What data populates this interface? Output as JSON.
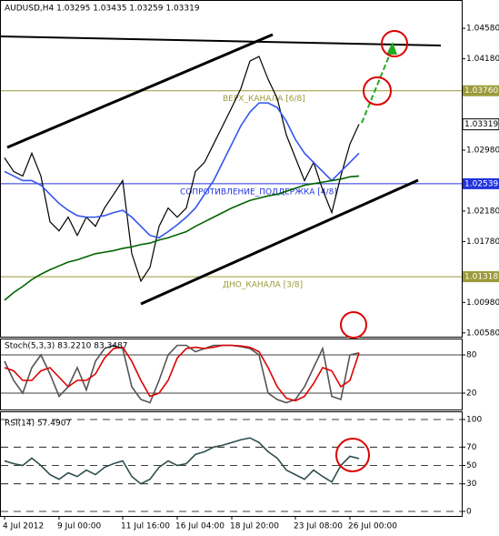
{
  "chart_data": [
    {
      "type": "line",
      "title": "AUDUSD,H4  1.03295 1.03435 1.03259 1.03319",
      "categories": [
        "4 Jul 2012",
        null,
        null,
        null,
        null,
        null,
        "9 Jul 00:00",
        null,
        null,
        null,
        null,
        null,
        null,
        "11 Jul 16:00",
        null,
        null,
        null,
        null,
        null,
        "16 Jul 04:00",
        null,
        null,
        null,
        null,
        null,
        "18 Jul 20:00",
        null,
        null,
        null,
        null,
        null,
        null,
        "23 Jul 08:00",
        null,
        null,
        null,
        null,
        null,
        "26 Jul 00:00",
        null
      ],
      "series": [
        {
          "color": "#000000",
          "values": [
            1.0288,
            1.027,
            1.0264,
            1.0294,
            1.0264,
            1.0204,
            1.0192,
            1.021,
            1.0186,
            1.021,
            1.0198,
            1.0222,
            1.024,
            1.0258,
            1.0162,
            1.0126,
            1.0144,
            1.0198,
            1.0222,
            1.021,
            1.0222,
            1.027,
            1.0282,
            1.0306,
            1.033,
            1.0354,
            1.0379,
            1.0415,
            1.0421,
            1.0391,
            1.0366,
            1.0318,
            1.0288,
            1.0258,
            1.0282,
            1.0246,
            1.0216,
            1.0264,
            1.0306,
            1.0332
          ]
        },
        {
          "color": "#3355ee",
          "values": [
            1.027,
            1.0264,
            1.0258,
            1.0258,
            1.0252,
            1.024,
            1.0228,
            1.0219,
            1.0212,
            1.021,
            1.021,
            1.0212,
            1.0216,
            1.0219,
            1.021,
            1.0198,
            1.0186,
            1.0183,
            1.0191,
            1.02,
            1.021,
            1.0222,
            1.024,
            1.0258,
            1.0282,
            1.0306,
            1.033,
            1.0348,
            1.036,
            1.036,
            1.0354,
            1.0336,
            1.0312,
            1.0294,
            1.0282,
            1.027,
            1.0258,
            1.027,
            1.0282,
            1.0294
          ]
        },
        {
          "color": "#006400",
          "values": [
            1.0101,
            1.0111,
            1.0119,
            1.0128,
            1.0135,
            1.0141,
            1.0146,
            1.0151,
            1.0154,
            1.0158,
            1.0162,
            1.0164,
            1.0166,
            1.0169,
            1.0171,
            1.0174,
            1.0176,
            1.018,
            1.0183,
            1.0187,
            1.0191,
            1.0198,
            1.0204,
            1.021,
            1.0216,
            1.0222,
            1.0227,
            1.0232,
            1.0235,
            1.0238,
            1.024,
            1.0244,
            1.0248,
            1.0252,
            1.0254,
            1.0256,
            1.0258,
            1.026,
            1.0263,
            1.0264
          ]
        }
      ],
      "ylim": [
        1.0053,
        1.0494
      ],
      "yticks": [
        {
          "value": 1.0058,
          "label": "1.00580"
        },
        {
          "value": 1.0098,
          "label": "1.00980"
        },
        {
          "value": 1.0178,
          "label": "1.01780"
        },
        {
          "value": 1.0218,
          "label": "1.02180"
        },
        {
          "value": 1.0298,
          "label": "1.02980"
        },
        {
          "value": 1.0418,
          "label": "1.04180"
        },
        {
          "value": 1.0458,
          "label": "1.04580"
        }
      ],
      "levels": [
        {
          "value": 1.0376,
          "label": "1.03760",
          "color": "#9a9a3a",
          "annotation": "ВЕРХ_КАНАЛА [6/8]"
        },
        {
          "value": 1.02539,
          "label": "1.02539",
          "color": "#2233dd",
          "annotation": "СОПРОТИВЛЕНИЕ_ПОДДЕРЖКА [4/8]"
        },
        {
          "value": 1.01318,
          "label": "1.01318",
          "color": "#9a9a3a",
          "annotation": "ДНО_КАНАЛА [3/8]"
        }
      ],
      "last_price": {
        "value": 1.03319,
        "label": "1.03319"
      }
    },
    {
      "type": "line",
      "title": "Stoch(5,3,3) 83.2210 83.3487",
      "series": [
        {
          "color": "#555555",
          "values": [
            70,
            40,
            20,
            60,
            80,
            50,
            15,
            30,
            60,
            25,
            70,
            90,
            95,
            90,
            30,
            10,
            5,
            40,
            80,
            95,
            95,
            85,
            90,
            95,
            95,
            95,
            93,
            90,
            80,
            20,
            10,
            5,
            10,
            30,
            60,
            90,
            15,
            10,
            80,
            83.2
          ]
        },
        {
          "color": "#dd0000",
          "values": [
            60,
            55,
            40,
            40,
            55,
            60,
            45,
            30,
            40,
            40,
            50,
            75,
            90,
            92,
            70,
            40,
            15,
            20,
            40,
            75,
            90,
            92,
            90,
            92,
            95,
            95,
            94,
            92,
            85,
            60,
            30,
            12,
            8,
            15,
            35,
            60,
            55,
            30,
            40,
            83.3
          ]
        }
      ],
      "ylim": [
        0,
        100
      ],
      "yticks": [
        80,
        20
      ]
    },
    {
      "type": "line",
      "title": "RSI(14) 57.4907",
      "series": [
        {
          "color": "#2f4f4f",
          "values": [
            55,
            52,
            50,
            58,
            50,
            40,
            35,
            42,
            38,
            45,
            40,
            48,
            52,
            55,
            38,
            30,
            35,
            48,
            55,
            50,
            52,
            62,
            65,
            70,
            72,
            75,
            78,
            80,
            75,
            65,
            58,
            45,
            40,
            35,
            45,
            38,
            32,
            50,
            60,
            57.5
          ]
        }
      ],
      "ylim": [
        0,
        100
      ],
      "yticks": [
        100,
        70,
        50,
        30,
        0
      ]
    }
  ]
}
